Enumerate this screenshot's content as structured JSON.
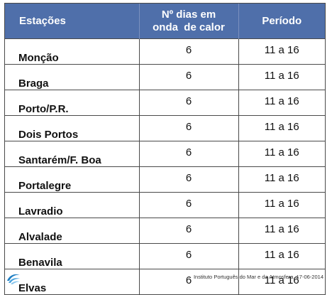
{
  "table": {
    "headers": {
      "station": "Estações",
      "days_line1": "Nº dias em",
      "days_line2": "onda  de calor",
      "period": "Período"
    },
    "rows": [
      {
        "station": "Monção",
        "days": "6",
        "period": "11 a 16"
      },
      {
        "station": "Braga",
        "days": "6",
        "period": "11 a 16"
      },
      {
        "station": "Porto/P.R.",
        "days": "6",
        "period": "11 a 16"
      },
      {
        "station": "Dois Portos",
        "days": "6",
        "period": "11 a 16"
      },
      {
        "station": "Santarém/F. Boa",
        "days": "6",
        "period": "11 a 16"
      },
      {
        "station": "Portalegre",
        "days": "6",
        "period": "11 a 16"
      },
      {
        "station": "Lavradio",
        "days": "6",
        "period": "11 a 16"
      },
      {
        "station": "Alvalade",
        "days": "6",
        "period": "11 a 16"
      },
      {
        "station": "Benavila",
        "days": "6",
        "period": "11 a 16"
      },
      {
        "station": "Elvas",
        "days": "6",
        "period": "11 a 16"
      }
    ]
  },
  "footer": {
    "credit": "Instituto Português do Mar e da Atmosfera, 17-06-2014",
    "logo_icon": "ipma-logo-icon"
  },
  "colors": {
    "header_bg": "#4f6faa",
    "header_text": "#ffffff",
    "logo_primary": "#1f7fc4"
  }
}
